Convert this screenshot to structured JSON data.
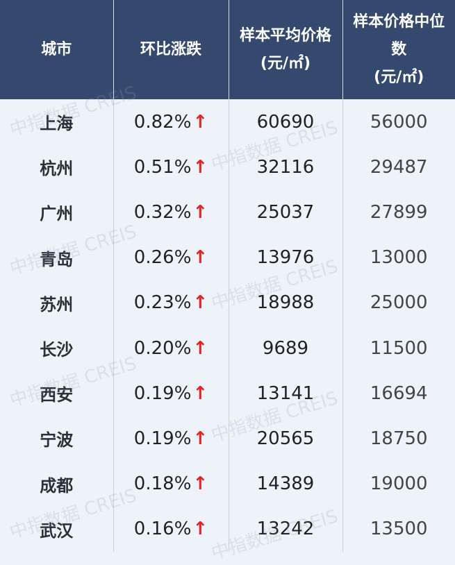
{
  "header": {
    "city": "城市",
    "change": "环比涨跌",
    "avg_price": "样本平均价格",
    "avg_unit": "(元/㎡)",
    "median_price": "样本价格中位数",
    "median_unit": "(元/㎡)"
  },
  "arrow_icon": "↑",
  "colors": {
    "header_bg": "#34496d",
    "up_arrow": "#e8201f",
    "body_bg": "#eef3fa"
  },
  "watermark": "中指数据 CREIS",
  "rows": [
    {
      "city": "上海",
      "change": "0.82%",
      "avg": "60690",
      "median": "56000"
    },
    {
      "city": "杭州",
      "change": "0.51%",
      "avg": "32116",
      "median": "29487"
    },
    {
      "city": "广州",
      "change": "0.32%",
      "avg": "25037",
      "median": "27899"
    },
    {
      "city": "青岛",
      "change": "0.26%",
      "avg": "13976",
      "median": "13000"
    },
    {
      "city": "苏州",
      "change": "0.23%",
      "avg": "18988",
      "median": "25000"
    },
    {
      "city": "长沙",
      "change": "0.20%",
      "avg": "9689",
      "median": "11500"
    },
    {
      "city": "西安",
      "change": "0.19%",
      "avg": "13141",
      "median": "16694"
    },
    {
      "city": "宁波",
      "change": "0.19%",
      "avg": "20565",
      "median": "18750"
    },
    {
      "city": "成都",
      "change": "0.18%",
      "avg": "14389",
      "median": "19000"
    },
    {
      "city": "武汉",
      "change": "0.16%",
      "avg": "13242",
      "median": "13500"
    }
  ]
}
